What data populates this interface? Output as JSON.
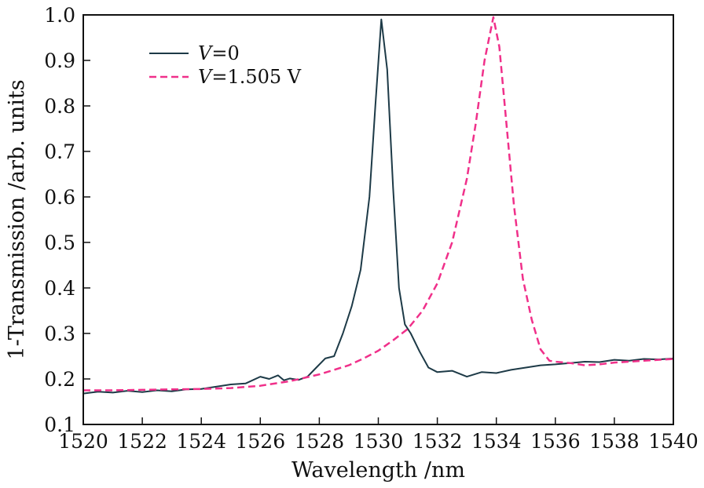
{
  "chart_data": {
    "type": "line",
    "title": "",
    "xlabel": "Wavelength /nm",
    "ylabel": "1-Transmission /arb. units",
    "xlim": [
      1520,
      1540
    ],
    "ylim": [
      0.1,
      1.0
    ],
    "xticks": [
      1520,
      1522,
      1524,
      1526,
      1528,
      1530,
      1532,
      1534,
      1536,
      1538,
      1540
    ],
    "yticks": [
      0.1,
      0.2,
      0.3,
      0.4,
      0.5,
      0.6,
      0.7,
      0.8,
      0.9,
      1.0
    ],
    "xtick_labels": [
      "1520",
      "1522",
      "1524",
      "1526",
      "1528",
      "1530",
      "1532",
      "1534",
      "1536",
      "1538",
      "1540"
    ],
    "ytick_labels": [
      "0.1",
      "0.2",
      "0.3",
      "0.4",
      "0.5",
      "0.6",
      "0.7",
      "0.8",
      "0.9",
      "1.0"
    ],
    "grid": false,
    "legend_position": "top-left",
    "series": [
      {
        "name": "V=0",
        "legend_italic": "V",
        "legend_rest": "=0",
        "color": "#1d3a47",
        "style": "solid",
        "x": [
          1520,
          1520.5,
          1521,
          1521.5,
          1522,
          1522.5,
          1523,
          1523.5,
          1524,
          1524.5,
          1525,
          1525.5,
          1526,
          1526.3,
          1526.6,
          1526.8,
          1527,
          1527.3,
          1527.6,
          1527.9,
          1528.2,
          1528.5,
          1528.8,
          1529.1,
          1529.4,
          1529.7,
          1529.9,
          1530.1,
          1530.3,
          1530.5,
          1530.7,
          1530.9,
          1531.1,
          1531.4,
          1531.7,
          1532,
          1532.5,
          1533,
          1533.5,
          1534,
          1534.5,
          1535,
          1535.5,
          1536,
          1536.5,
          1537,
          1537.5,
          1538,
          1538.5,
          1539,
          1539.5,
          1540
        ],
        "y": [
          0.168,
          0.172,
          0.17,
          0.174,
          0.171,
          0.175,
          0.173,
          0.177,
          0.178,
          0.183,
          0.188,
          0.19,
          0.205,
          0.2,
          0.208,
          0.197,
          0.201,
          0.198,
          0.205,
          0.225,
          0.245,
          0.25,
          0.3,
          0.36,
          0.44,
          0.6,
          0.8,
          0.99,
          0.88,
          0.62,
          0.4,
          0.32,
          0.3,
          0.26,
          0.225,
          0.215,
          0.218,
          0.205,
          0.215,
          0.213,
          0.22,
          0.225,
          0.23,
          0.232,
          0.235,
          0.238,
          0.237,
          0.242,
          0.24,
          0.244,
          0.243,
          0.245
        ]
      },
      {
        "name": "V=1.505 V",
        "legend_italic": "V",
        "legend_rest": "=1.505 V",
        "color": "#f0308a",
        "style": "dashed",
        "x": [
          1520,
          1521,
          1522,
          1523,
          1524,
          1525,
          1526,
          1527,
          1528,
          1529,
          1529.5,
          1530,
          1530.5,
          1531,
          1531.5,
          1532,
          1532.5,
          1533,
          1533.3,
          1533.6,
          1533.9,
          1534.1,
          1534.3,
          1534.6,
          1534.9,
          1535.2,
          1535.5,
          1535.8,
          1536,
          1536.5,
          1537,
          1537.5,
          1538,
          1538.5,
          1539,
          1539.5,
          1540
        ],
        "y": [
          0.175,
          0.175,
          0.176,
          0.177,
          0.178,
          0.18,
          0.185,
          0.195,
          0.21,
          0.23,
          0.245,
          0.262,
          0.285,
          0.31,
          0.35,
          0.41,
          0.5,
          0.64,
          0.76,
          0.9,
          0.995,
          0.93,
          0.79,
          0.58,
          0.42,
          0.33,
          0.265,
          0.24,
          0.238,
          0.235,
          0.23,
          0.232,
          0.236,
          0.238,
          0.24,
          0.242,
          0.244
        ]
      }
    ]
  }
}
